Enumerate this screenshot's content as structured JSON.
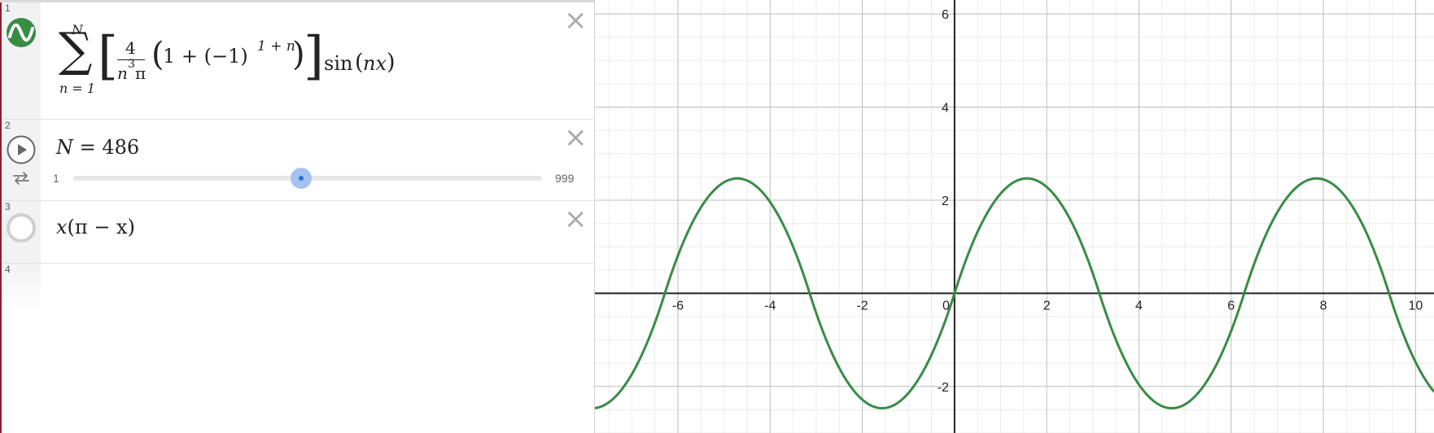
{
  "expressions": [
    {
      "number": "1",
      "icon": "curve-icon",
      "color": "#388c46",
      "sum_upper": "N",
      "sum_lower": "n = 1",
      "frac_num": "4",
      "frac_den_var": "n",
      "frac_den_exp": "3",
      "frac_den_pi": "π",
      "paren_inner": "1 + (−1)",
      "paren_exp": "1 + n",
      "sin_label": "sin",
      "sin_arg": "nx"
    },
    {
      "number": "2",
      "slider_var": "N",
      "slider_eq": " = 486",
      "slider_min": "1",
      "slider_max": "999",
      "slider_value": 486,
      "play_icon": "play-icon",
      "loop_icon": "repeat-icon"
    },
    {
      "number": "3",
      "icon": "hidden-circle-icon",
      "var1": "x",
      "rest": "(π − x)"
    },
    {
      "number": "4"
    }
  ],
  "delete_icon": "close-icon",
  "graph": {
    "x_ticks": [
      "-6",
      "-4",
      "-2",
      "0",
      "2",
      "4",
      "6",
      "8",
      "10"
    ],
    "y_ticks_pos": [
      "6",
      "4",
      "2"
    ],
    "y_ticks_neg": [
      "-2"
    ],
    "xlim": [
      -7.8,
      10.4
    ],
    "ylim": [
      -3.0,
      6.3
    ],
    "curve_color": "#388c46"
  }
}
